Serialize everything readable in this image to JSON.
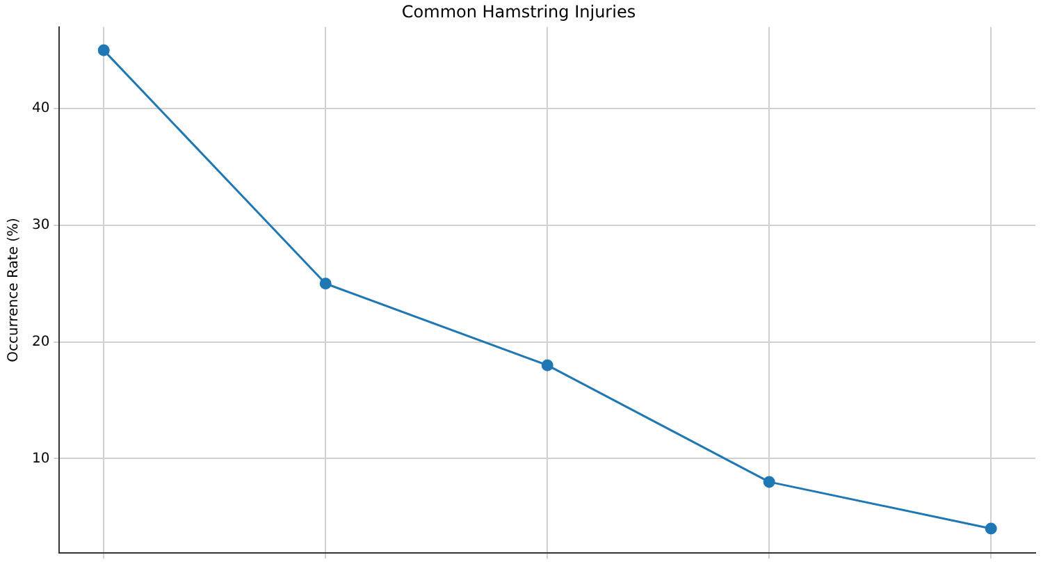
{
  "chart_data": {
    "type": "line",
    "title": "Common Hamstring Injuries",
    "ylabel": "Occurrence Rate (%)",
    "categories": [
      null,
      null,
      null,
      null,
      null
    ],
    "series": [
      {
        "color": "#1f77b4",
        "values": [
          45,
          25,
          18,
          8,
          4
        ]
      }
    ],
    "ylim": [
      1.9,
      47
    ],
    "yticks": [
      10,
      20,
      30,
      40
    ],
    "grid": true,
    "marker": "circle",
    "line_style": "solid",
    "legend": false
  }
}
